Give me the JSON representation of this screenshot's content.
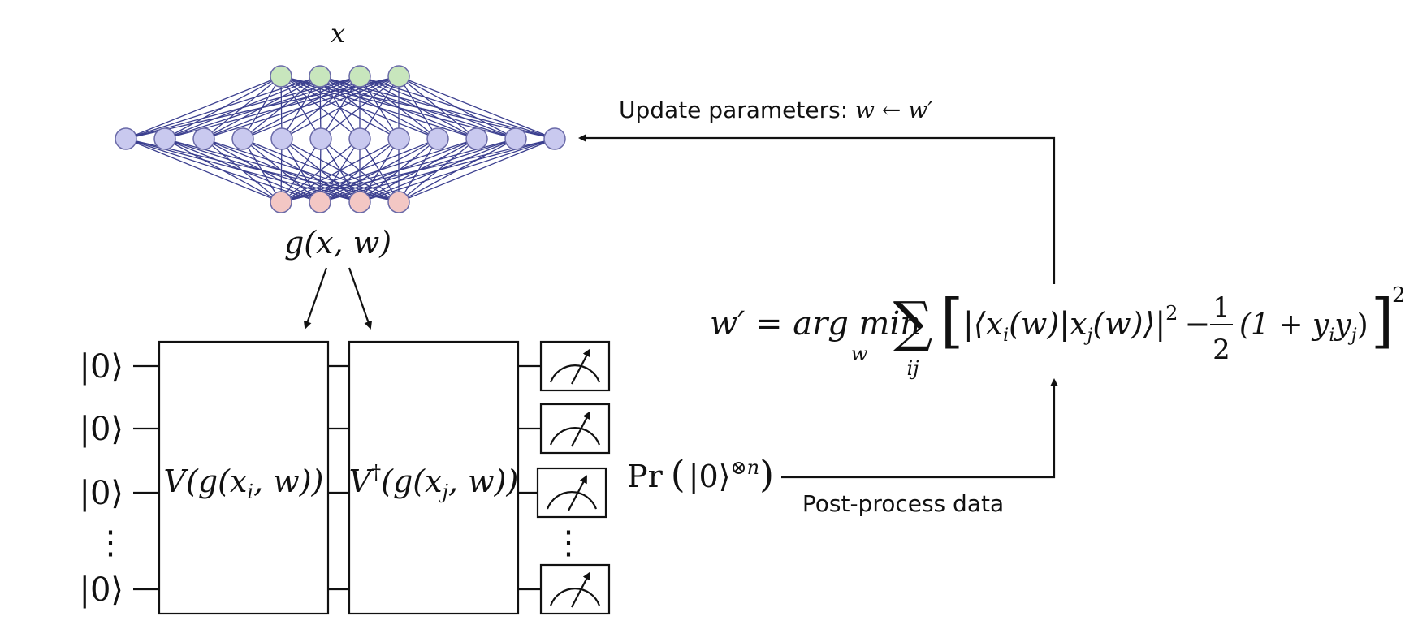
{
  "network": {
    "input_label": "x",
    "output_label": "g(x, w)",
    "colors": {
      "edge": "#3b3f8f",
      "hidden_fill": "#c9c9ef",
      "input_fill": "#c8e6bd",
      "output_fill": "#f3c7c4",
      "node_stroke": "#6a6aa8"
    }
  },
  "feedback": {
    "label_prefix": "Update parameters: ",
    "label_math": "w ← w′"
  },
  "circuit": {
    "qubit_labels": [
      "|0⟩",
      "|0⟩",
      "|0⟩",
      "⋮",
      "|0⟩"
    ],
    "gate1": {
      "prefix": "V(g(x",
      "sub": "i",
      "suffix": ", w))"
    },
    "gate2": {
      "prefix": "V",
      "sup": "†",
      "mid": "(g(x",
      "sub": "j",
      "suffix": ", w))"
    }
  },
  "measurement": {
    "prob_prefix": "Pr",
    "prob_ket": "|0⟩",
    "prob_sup": "⊗n",
    "postprocess_label": "Post-process data"
  },
  "objective": {
    "lhs": "w′ = arg min",
    "argmin_sub": "w",
    "sum_symbol": "∑",
    "sum_sub": "ij",
    "term1": "|⟨x",
    "term1_sub": "i",
    "term1_mid": "(w)|x",
    "term1_sub2": "j",
    "term1_end": "(w)⟩|",
    "term1_sup": "2",
    "minus": "−",
    "frac_num": "1",
    "frac_den": "2",
    "term2": "(1 + y",
    "term2_sub": "i",
    "term2_mid": "y",
    "term2_sub2": "j",
    "term2_end": ")",
    "outer_sup": "2"
  }
}
